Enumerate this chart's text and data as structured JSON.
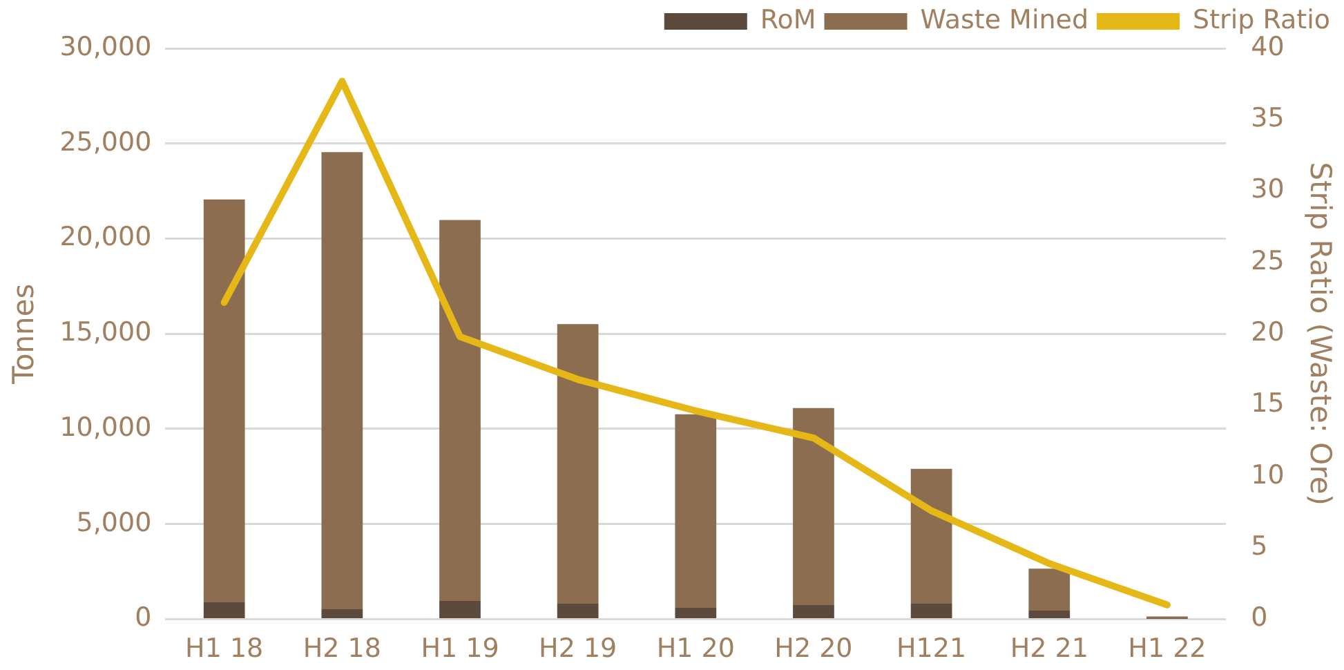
{
  "chart_data": {
    "type": "bar",
    "stacked": true,
    "ylabel": "Tonnes",
    "y2label": "Strip Ratio (Waste: Ore)",
    "categories": [
      "H1 18",
      "H2 18",
      "H1 19",
      "H2 19",
      "H1 20",
      "H2 20",
      "H121",
      "H2 21",
      "H1 22"
    ],
    "series": [
      {
        "name": "RoM",
        "color": "#5c4a3c",
        "values": [
          910,
          520,
          960,
          810,
          620,
          740,
          840,
          450,
          20
        ]
      },
      {
        "name": "Waste Mined",
        "color": "#8c6d4f",
        "values": [
          21150,
          24030,
          20020,
          14700,
          10150,
          10360,
          7060,
          2210,
          120
        ]
      },
      {
        "name": "Strip Ratio",
        "type": "line",
        "axis": "y2",
        "color": "#e5b817",
        "values": [
          22.2,
          37.7,
          19.8,
          16.8,
          14.6,
          12.7,
          7.6,
          3.9,
          1.0
        ]
      }
    ],
    "ylim": [
      0,
      30000
    ],
    "yticks": [
      {
        "value": 0,
        "label": "0"
      },
      {
        "value": 5000,
        "label": "5,000"
      },
      {
        "value": 10000,
        "label": "10,000"
      },
      {
        "value": 15000,
        "label": "15,000"
      },
      {
        "value": 20000,
        "label": "20,000"
      },
      {
        "value": 25000,
        "label": "25,000"
      },
      {
        "value": 30000,
        "label": "30,000"
      }
    ],
    "y2lim": [
      0,
      40
    ],
    "y2ticks": [
      0,
      5,
      10,
      15,
      20,
      25,
      30,
      35,
      40
    ],
    "grid": "y",
    "legend": "top right",
    "marker": "none",
    "line_style": "solid"
  }
}
